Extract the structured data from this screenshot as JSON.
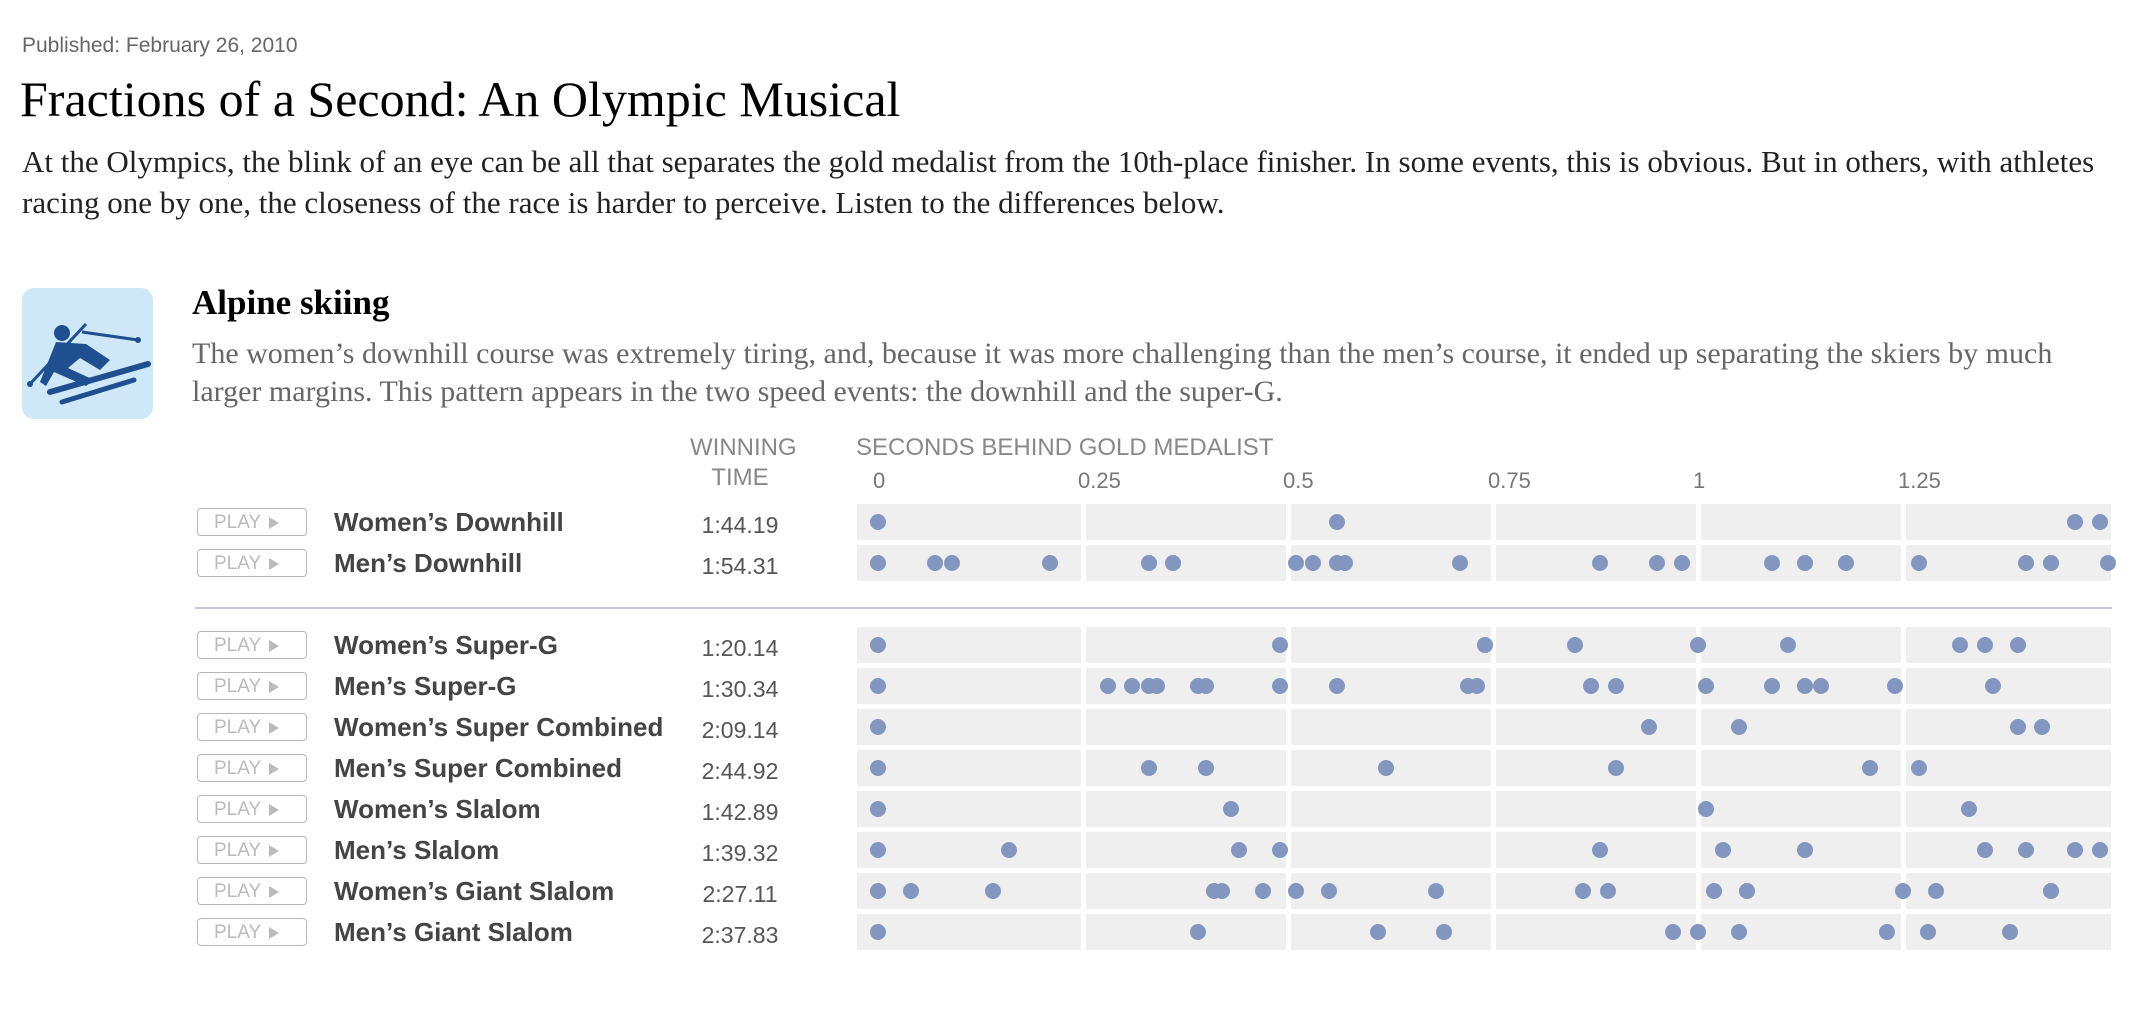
{
  "published": "Published: February 26, 2010",
  "headline": "Fractions of a Second: An Olympic Musical",
  "intro": "At the Olympics, the blink of an eye can be all that separates the gold medalist from the 10th-place finisher. In some events, this is obvious. But in others, with athletes racing one by one, the closeness of the race is harder to perceive. Listen to the differences below.",
  "section": {
    "icon": "alpine-skier-icon",
    "title": "Alpine skiing",
    "description": "The women’s downhill course was extremely tiring, and, because it was more challenging than the men’s course, it ended up separating the skiers by much larger margins. This pattern appears in the two speed events: the downhill and the super-G."
  },
  "columns": {
    "winning_time": "WINNING TIME",
    "seconds_behind": "SECONDS BEHIND GOLD MEDALIST"
  },
  "play_label": "PLAY",
  "colors": {
    "dot": "#8296c0",
    "strip": "#efefef",
    "icon_bg": "#cfe8f7",
    "icon_fg": "#1f4f8f"
  },
  "chart_data": {
    "type": "scatter",
    "xlabel": "SECONDS BEHIND GOLD MEDALIST",
    "xlim": [
      0,
      1.52
    ],
    "ticks": [
      0,
      0.25,
      0.5,
      0.75,
      1,
      1.25
    ],
    "tick_labels": [
      "0",
      "0.25",
      "0.5",
      "0.75",
      "1",
      "1.25"
    ],
    "groups": [
      [
        {
          "name": "Women’s Downhill",
          "winning_time": "1:44.19",
          "values": [
            0,
            0.56,
            1.46,
            1.49
          ]
        },
        {
          "name": "Men’s Downhill",
          "winning_time": "1:54.31",
          "values": [
            0,
            0.07,
            0.09,
            0.21,
            0.33,
            0.36,
            0.51,
            0.53,
            0.56,
            0.57,
            0.71,
            0.88,
            0.95,
            0.98,
            1.09,
            1.13,
            1.18,
            1.27,
            1.4,
            1.43,
            1.5
          ]
        }
      ],
      [
        {
          "name": "Women’s Super-G",
          "winning_time": "1:20.14",
          "values": [
            0,
            0.49,
            0.74,
            0.85,
            1.0,
            1.11,
            1.32,
            1.35,
            1.39
          ]
        },
        {
          "name": "Men’s Super-G",
          "winning_time": "1:30.34",
          "values": [
            0,
            0.28,
            0.31,
            0.33,
            0.34,
            0.39,
            0.4,
            0.49,
            0.56,
            0.72,
            0.73,
            0.87,
            0.9,
            1.01,
            1.09,
            1.13,
            1.15,
            1.24,
            1.36
          ]
        },
        {
          "name": "Women’s Super Combined",
          "winning_time": "2:09.14",
          "values": [
            0,
            0.94,
            1.05,
            1.39,
            1.42
          ]
        },
        {
          "name": "Men’s Super Combined",
          "winning_time": "2:44.92",
          "values": [
            0,
            0.33,
            0.4,
            0.62,
            0.9,
            1.21,
            1.27
          ]
        },
        {
          "name": "Women’s Slalom",
          "winning_time": "1:42.89",
          "values": [
            0,
            0.43,
            1.01,
            1.33
          ]
        },
        {
          "name": "Men’s Slalom",
          "winning_time": "1:39.32",
          "values": [
            0,
            0.16,
            0.44,
            0.49,
            0.88,
            1.03,
            1.13,
            1.35,
            1.4,
            1.46,
            1.49
          ]
        },
        {
          "name": "Women’s Giant Slalom",
          "winning_time": "2:27.11",
          "values": [
            0,
            0.04,
            0.14,
            0.41,
            0.42,
            0.47,
            0.51,
            0.55,
            0.68,
            0.86,
            0.89,
            1.02,
            1.06,
            1.25,
            1.29,
            1.43
          ]
        },
        {
          "name": "Men’s Giant Slalom",
          "winning_time": "2:37.83",
          "values": [
            0,
            0.39,
            0.61,
            0.69,
            0.97,
            1.0,
            1.05,
            1.23,
            1.28,
            1.38
          ]
        }
      ]
    ]
  }
}
